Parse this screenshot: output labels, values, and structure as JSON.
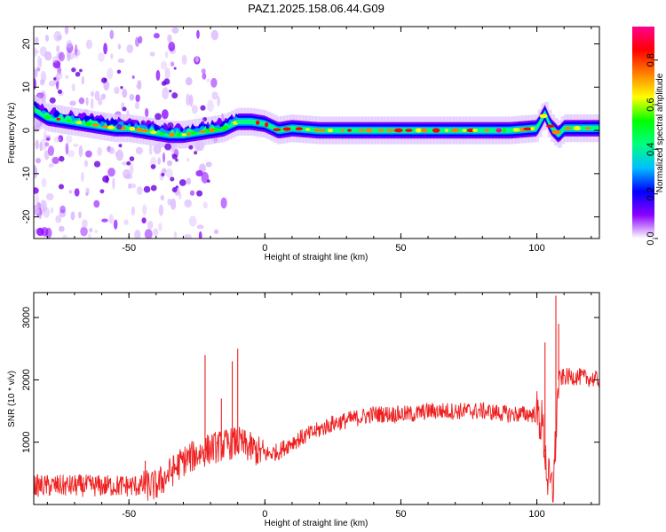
{
  "title": "PAZ1.2025.158.06.44.G09",
  "chart_data": [
    {
      "type": "heatmap",
      "xlabel": "Height of straight line (km)",
      "ylabel": "Frequency (Hz)",
      "xlim": [
        -85,
        123
      ],
      "ylim": [
        -25,
        24
      ],
      "xticks": [
        -50,
        0,
        50,
        100
      ],
      "yticks": [
        -20,
        -10,
        0,
        10,
        20
      ],
      "ridge": {
        "x": [
          -85,
          -80,
          -75,
          -70,
          -65,
          -60,
          -55,
          -50,
          -45,
          -40,
          -35,
          -30,
          -25,
          -20,
          -15,
          -10,
          -5,
          0,
          5,
          10,
          20,
          30,
          40,
          50,
          60,
          70,
          80,
          90,
          100,
          103,
          105,
          108,
          110,
          115,
          123
        ],
        "y": [
          5,
          3,
          2.5,
          2,
          1.5,
          1,
          0.5,
          0.5,
          0,
          -0.5,
          -1,
          -1,
          -0.5,
          0,
          0.5,
          2,
          2,
          1.5,
          0,
          0.5,
          0,
          0,
          0,
          0,
          0,
          0,
          0,
          0,
          0.5,
          4,
          1,
          -1,
          0.5,
          0.5,
          0.5
        ]
      },
      "colorbar": {
        "label": "Normalized spectral amplitude",
        "ticks": [
          0.0,
          0.2,
          0.4,
          0.6,
          0.8
        ],
        "range": [
          0,
          0.95
        ],
        "colors": [
          "#ffffff",
          "#8b00ff",
          "#0000ff",
          "#00bfff",
          "#00ff80",
          "#00ff00",
          "#ffff00",
          "#ff8000",
          "#ff0000",
          "#ff0090"
        ]
      }
    },
    {
      "type": "line",
      "xlabel": "Height of straight line (km)",
      "ylabel": "SNR (10 * v/v)",
      "xlim": [
        -85,
        123
      ],
      "ylim": [
        0,
        3400
      ],
      "xticks": [
        -50,
        0,
        50,
        100
      ],
      "yticks": [
        1000,
        2000,
        3000
      ],
      "color": "#ee2020",
      "trend": {
        "x": [
          -85,
          -70,
          -60,
          -50,
          -45,
          -40,
          -35,
          -30,
          -25,
          -20,
          -15,
          -10,
          -5,
          0,
          5,
          10,
          15,
          20,
          25,
          30,
          35,
          40,
          45,
          50,
          55,
          60,
          70,
          80,
          90,
          100,
          102,
          104,
          106,
          108,
          110,
          115,
          123
        ],
        "y": [
          300,
          300,
          300,
          300,
          300,
          300,
          500,
          700,
          800,
          900,
          950,
          1000,
          900,
          800,
          850,
          1000,
          1100,
          1200,
          1300,
          1350,
          1400,
          1450,
          1450,
          1450,
          1450,
          1500,
          1500,
          1500,
          1450,
          1450,
          1300,
          400,
          200,
          2000,
          2050,
          2050,
          2000
        ]
      },
      "spikes": [
        {
          "x": -44,
          "y": 700
        },
        {
          "x": -22,
          "y": 2400
        },
        {
          "x": -16,
          "y": 1700
        },
        {
          "x": -12,
          "y": 2300
        },
        {
          "x": -10,
          "y": 2500
        },
        {
          "x": 103,
          "y": 2600
        },
        {
          "x": 107,
          "y": 3350
        },
        {
          "x": 108,
          "y": 2900
        }
      ]
    }
  ]
}
